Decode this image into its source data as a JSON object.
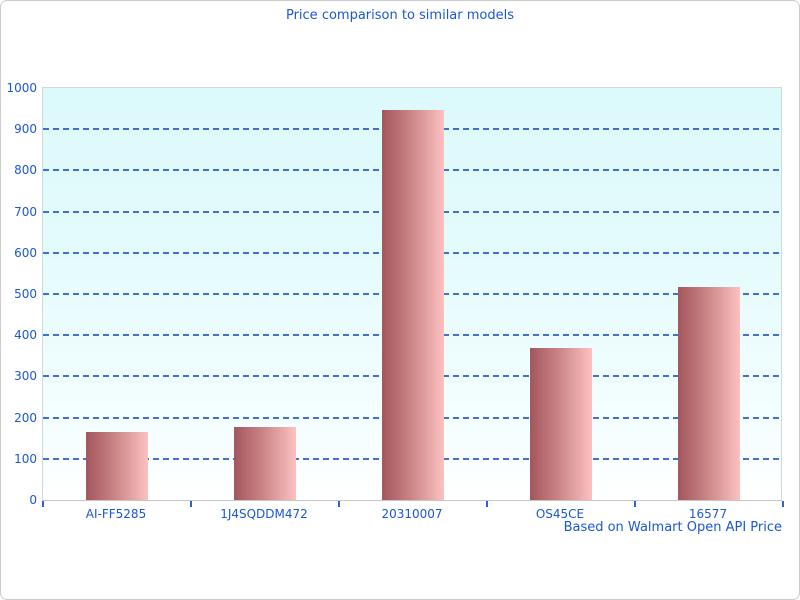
{
  "page": {
    "title": "Price comparison to similar models",
    "footer": "Based on Walmart Open API Price"
  },
  "chart_data": {
    "type": "bar",
    "title": "Price comparison to similar models",
    "categories": [
      "AI-FF5285",
      "1J4SQDDM472",
      "20310007",
      "OS45CE",
      "16577"
    ],
    "values": [
      165,
      177,
      947,
      369,
      517
    ],
    "xlabel": "",
    "ylabel": "",
    "ylim": [
      0,
      1000
    ],
    "ytick_step": 100,
    "grid": "horizontal-dashed",
    "legend_position": "none",
    "annotation": "Based on Walmart Open API Price",
    "colors": {
      "text_blue": "#1b57d2",
      "gridline_blue": "#3060c8",
      "tick_blue": "#2f62cc",
      "bar_gradient_left": "#a3565c",
      "bar_gradient_right": "#fdc1c1",
      "plot_bg_top": "#dcf9fb",
      "plot_bg_bottom": "#ffffff",
      "axis_line": "#c6c6c6",
      "page_border": "#cccccc"
    }
  }
}
